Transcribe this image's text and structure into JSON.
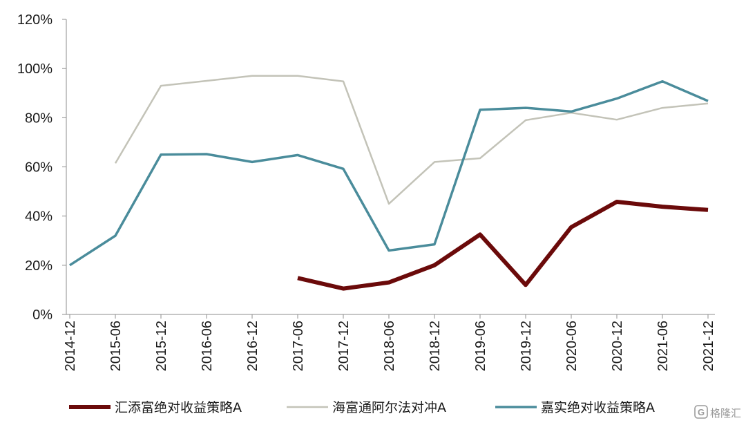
{
  "chart_data": {
    "type": "line",
    "categories": [
      "2014-12",
      "2015-06",
      "2015-12",
      "2016-06",
      "2016-12",
      "2017-06",
      "2017-12",
      "2018-06",
      "2018-12",
      "2019-06",
      "2019-12",
      "2020-06",
      "2020-12",
      "2021-06",
      "2021-12"
    ],
    "ylim": [
      0,
      120
    ],
    "yticks": [
      0,
      20,
      40,
      60,
      80,
      100,
      120
    ],
    "ytick_labels": [
      "0%",
      "20%",
      "40%",
      "60%",
      "80%",
      "100%",
      "120%"
    ],
    "grid": false,
    "legend_position": "bottom",
    "series": [
      {
        "name": "汇添富绝对收益策略A",
        "color": "#6b0a0a",
        "width": 6,
        "values": [
          null,
          null,
          null,
          null,
          null,
          14.8,
          10.5,
          13.0,
          20.0,
          32.5,
          12.0,
          35.5,
          45.8,
          43.8,
          42.5
        ]
      },
      {
        "name": "海富通阿尔法对冲A",
        "color": "#c3c3b8",
        "width": 2.5,
        "values": [
          null,
          61.5,
          93.0,
          95.0,
          97.0,
          97.0,
          94.8,
          45.0,
          62.0,
          63.5,
          79.0,
          82.0,
          79.2,
          84.0,
          85.8
        ]
      },
      {
        "name": "嘉实绝对收益策略A",
        "color": "#4a8c9b",
        "width": 3.5,
        "values": [
          20.0,
          32.0,
          65.0,
          65.2,
          62.0,
          64.8,
          59.2,
          26.0,
          28.5,
          83.2,
          84.0,
          82.5,
          87.8,
          94.8,
          86.8
        ]
      }
    ]
  },
  "watermark": {
    "text": "格隆汇",
    "icon": "glh-logo-icon"
  }
}
